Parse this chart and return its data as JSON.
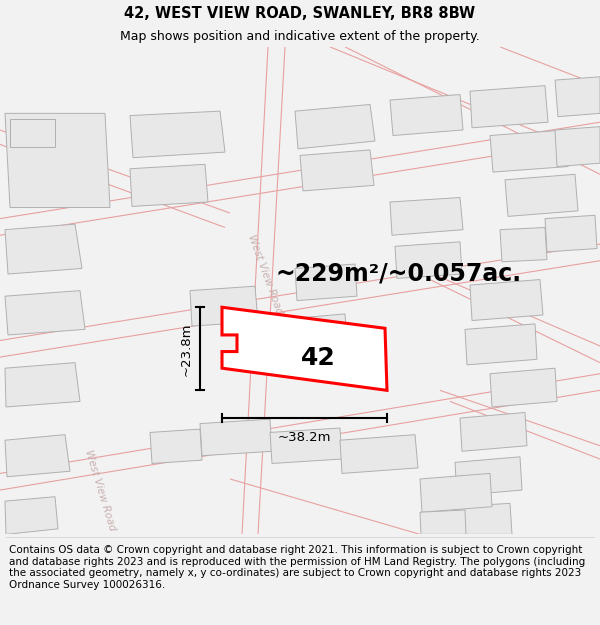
{
  "title": "42, WEST VIEW ROAD, SWANLEY, BR8 8BW",
  "subtitle": "Map shows position and indicative extent of the property.",
  "area_label": "~229m²/~0.057ac.",
  "width_label": "~38.2m",
  "height_label": "~23.8m",
  "property_number": "42",
  "copyright_text": "Contains OS data © Crown copyright and database right 2021. This information is subject to Crown copyright and database rights 2023 and is reproduced with the permission of HM Land Registry. The polygons (including the associated geometry, namely x, y co-ordinates) are subject to Crown copyright and database rights 2023 Ordnance Survey 100026316.",
  "bg_color": "#f2f2f2",
  "map_bg": "#ffffff",
  "building_fill": "#e8e8e8",
  "building_edge": "#b0b0b0",
  "road_color": "#e8a0a0",
  "property_color": "#ff0000",
  "road_label_color": "#c8b0b0",
  "title_fontsize": 10.5,
  "subtitle_fontsize": 9,
  "copyright_fontsize": 7.5,
  "area_fontsize": 17,
  "number_fontsize": 18,
  "dim_fontsize": 9.5
}
